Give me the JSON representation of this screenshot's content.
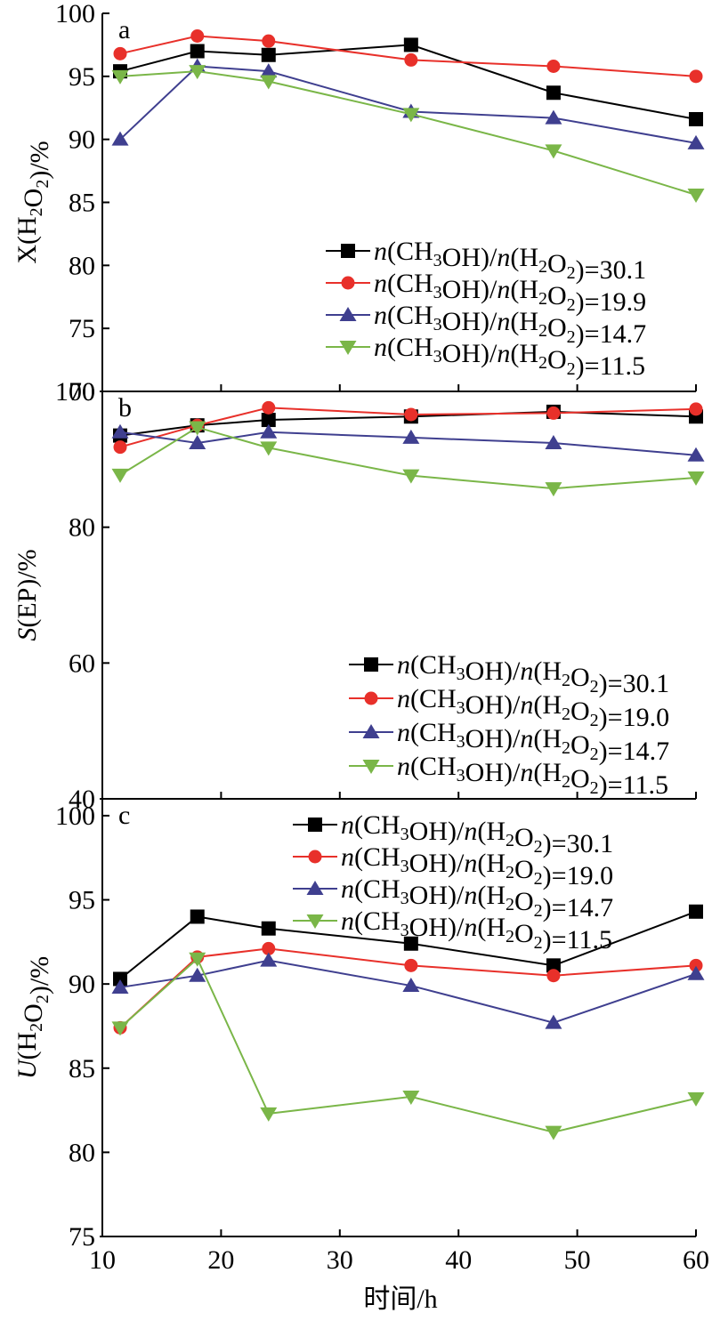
{
  "x_axis_label": "时间/h",
  "x_ticks": [
    "10",
    "20",
    "30",
    "40",
    "50",
    "60"
  ],
  "chart_data": [
    {
      "type": "line",
      "panel": "a",
      "ylabel": "X(H2O2)/%",
      "ylabel_parts": [
        {
          "t": "X(H"
        },
        {
          "t": "2",
          "sub": true
        },
        {
          "t": "O"
        },
        {
          "t": "2",
          "sub": true
        },
        {
          "t": ")/%"
        }
      ],
      "xlim": [
        10,
        60
      ],
      "ylim": [
        70,
        100
      ],
      "yticks": [
        "70",
        "75",
        "80",
        "85",
        "90",
        "95",
        "100"
      ],
      "x": [
        11.5,
        18,
        24,
        36,
        48,
        60
      ],
      "legend_position": "bottom-right",
      "series": [
        {
          "name": "n(CH3OH)/n(H2O2)=30.1",
          "legend_parts": [
            {
              "t": "n",
              "i": true
            },
            {
              "t": "(CH"
            },
            {
              "t": "3",
              "sub": true
            },
            {
              "t": "OH)/"
            },
            {
              "t": "n",
              "i": true
            },
            {
              "t": "(H"
            },
            {
              "t": "2",
              "sub": true
            },
            {
              "t": "O"
            },
            {
              "t": "2",
              "sub": true
            },
            {
              "t": ")=30.1"
            }
          ],
          "color": "#000000",
          "marker": "square",
          "values": [
            95.4,
            97.0,
            96.7,
            97.5,
            93.7,
            91.6
          ]
        },
        {
          "name": "n(CH3OH)/n(H2O2)=19.9",
          "legend_parts": [
            {
              "t": "n",
              "i": true
            },
            {
              "t": "(CH"
            },
            {
              "t": "3",
              "sub": true
            },
            {
              "t": "OH)/"
            },
            {
              "t": "n",
              "i": true
            },
            {
              "t": "(H"
            },
            {
              "t": "2",
              "sub": true
            },
            {
              "t": "O"
            },
            {
              "t": "2",
              "sub": true
            },
            {
              "t": ")=19.9"
            }
          ],
          "color": "#e8302a",
          "marker": "circle",
          "values": [
            96.8,
            98.2,
            97.8,
            96.3,
            95.8,
            95.0
          ]
        },
        {
          "name": "n(CH3OH)/n(H2O2)=14.7",
          "legend_parts": [
            {
              "t": "n",
              "i": true
            },
            {
              "t": "(CH"
            },
            {
              "t": "3",
              "sub": true
            },
            {
              "t": "OH)/"
            },
            {
              "t": "n",
              "i": true
            },
            {
              "t": "(H"
            },
            {
              "t": "2",
              "sub": true
            },
            {
              "t": "O"
            },
            {
              "t": "2",
              "sub": true
            },
            {
              "t": ")=14.7"
            }
          ],
          "color": "#3f3f8f",
          "marker": "triangle-up",
          "values": [
            90.0,
            95.8,
            95.4,
            92.2,
            91.7,
            89.7
          ]
        },
        {
          "name": "n(CH3OH)/n(H2O2)=11.5",
          "legend_parts": [
            {
              "t": "n",
              "i": true
            },
            {
              "t": "(CH"
            },
            {
              "t": "3",
              "sub": true
            },
            {
              "t": "OH)/"
            },
            {
              "t": "n",
              "i": true
            },
            {
              "t": "(H"
            },
            {
              "t": "2",
              "sub": true
            },
            {
              "t": "O"
            },
            {
              "t": "2",
              "sub": true
            },
            {
              "t": ")=11.5"
            }
          ],
          "color": "#7ab648",
          "marker": "triangle-down",
          "values": [
            95.0,
            95.4,
            94.6,
            92.0,
            89.1,
            85.6
          ]
        }
      ]
    },
    {
      "type": "line",
      "panel": "b",
      "ylabel": "S(EP)/%",
      "ylabel_parts": [
        {
          "t": "S",
          "i": true
        },
        {
          "t": "(EP)/%"
        }
      ],
      "xlim": [
        10,
        60
      ],
      "ylim": [
        40,
        100
      ],
      "yticks": [
        "40",
        "60",
        "80",
        "100"
      ],
      "x": [
        11.5,
        18,
        24,
        36,
        48,
        60
      ],
      "legend_position": "bottom-right",
      "series": [
        {
          "name": "n(CH3OH)/n(H2O2)=30.1",
          "legend_parts": [
            {
              "t": "n",
              "i": true
            },
            {
              "t": "(CH"
            },
            {
              "t": "3",
              "sub": true
            },
            {
              "t": "OH)/"
            },
            {
              "t": "n",
              "i": true
            },
            {
              "t": "(H"
            },
            {
              "t": "2",
              "sub": true
            },
            {
              "t": "O"
            },
            {
              "t": "2",
              "sub": true
            },
            {
              "t": ")=30.1"
            }
          ],
          "color": "#000000",
          "marker": "square",
          "values": [
            93.5,
            95.0,
            95.8,
            96.3,
            97.0,
            96.3
          ]
        },
        {
          "name": "n(CH3OH)/n(H2O2)=19.0",
          "legend_parts": [
            {
              "t": "n",
              "i": true
            },
            {
              "t": "(CH"
            },
            {
              "t": "3",
              "sub": true
            },
            {
              "t": "OH)/"
            },
            {
              "t": "n",
              "i": true
            },
            {
              "t": "(H"
            },
            {
              "t": "2",
              "sub": true
            },
            {
              "t": "O"
            },
            {
              "t": "2",
              "sub": true
            },
            {
              "t": ")=19.0"
            }
          ],
          "color": "#e8302a",
          "marker": "circle",
          "values": [
            91.8,
            95.0,
            97.6,
            96.6,
            96.8,
            97.4
          ]
        },
        {
          "name": "n(CH3OH)/n(H2O2)=14.7",
          "legend_parts": [
            {
              "t": "n",
              "i": true
            },
            {
              "t": "(CH"
            },
            {
              "t": "3",
              "sub": true
            },
            {
              "t": "OH)/"
            },
            {
              "t": "n",
              "i": true
            },
            {
              "t": "(H"
            },
            {
              "t": "2",
              "sub": true
            },
            {
              "t": "O"
            },
            {
              "t": "2",
              "sub": true
            },
            {
              "t": ")=14.7"
            }
          ],
          "color": "#3f3f8f",
          "marker": "triangle-up",
          "values": [
            94.0,
            92.4,
            94.0,
            93.2,
            92.4,
            90.6
          ]
        },
        {
          "name": "n(CH3OH)/n(H2O2)=11.5",
          "legend_parts": [
            {
              "t": "n",
              "i": true
            },
            {
              "t": "(CH"
            },
            {
              "t": "3",
              "sub": true
            },
            {
              "t": "OH)/"
            },
            {
              "t": "n",
              "i": true
            },
            {
              "t": "(H"
            },
            {
              "t": "2",
              "sub": true
            },
            {
              "t": "O"
            },
            {
              "t": "2",
              "sub": true
            },
            {
              "t": ")=11.5"
            }
          ],
          "color": "#7ab648",
          "marker": "triangle-down",
          "values": [
            87.7,
            94.7,
            91.7,
            87.6,
            85.7,
            87.3
          ]
        }
      ]
    },
    {
      "type": "line",
      "panel": "c",
      "ylabel": "U(H2O2)/%",
      "ylabel_parts": [
        {
          "t": "U",
          "i": true
        },
        {
          "t": "(H"
        },
        {
          "t": "2",
          "sub": true
        },
        {
          "t": "O"
        },
        {
          "t": "2",
          "sub": true
        },
        {
          "t": ")/%"
        }
      ],
      "xlim": [
        10,
        60
      ],
      "ylim": [
        75,
        101
      ],
      "yticks": [
        "75",
        "80",
        "85",
        "90",
        "95",
        "100"
      ],
      "x": [
        11.5,
        18,
        24,
        36,
        48,
        60
      ],
      "legend_position": "top-right",
      "series": [
        {
          "name": "n(CH3OH)/n(H2O2)=30.1",
          "legend_parts": [
            {
              "t": "n",
              "i": true
            },
            {
              "t": "(CH"
            },
            {
              "t": "3",
              "sub": true
            },
            {
              "t": "OH)/"
            },
            {
              "t": "n",
              "i": true
            },
            {
              "t": "(H"
            },
            {
              "t": "2",
              "sub": true
            },
            {
              "t": "O"
            },
            {
              "t": "2",
              "sub": true
            },
            {
              "t": ")=30.1"
            }
          ],
          "color": "#000000",
          "marker": "square",
          "values": [
            90.3,
            94.0,
            93.3,
            92.4,
            91.1,
            94.3
          ]
        },
        {
          "name": "n(CH3OH)/n(H2O2)=19.0",
          "legend_parts": [
            {
              "t": "n",
              "i": true
            },
            {
              "t": "(CH"
            },
            {
              "t": "3",
              "sub": true
            },
            {
              "t": "OH)/"
            },
            {
              "t": "n",
              "i": true
            },
            {
              "t": "(H"
            },
            {
              "t": "2",
              "sub": true
            },
            {
              "t": "O"
            },
            {
              "t": "2",
              "sub": true
            },
            {
              "t": ")=19.0"
            }
          ],
          "color": "#e8302a",
          "marker": "circle",
          "values": [
            87.4,
            91.6,
            92.1,
            91.1,
            90.5,
            91.1
          ]
        },
        {
          "name": "n(CH3OH)/n(H2O2)=14.7",
          "legend_parts": [
            {
              "t": "n",
              "i": true
            },
            {
              "t": "(CH"
            },
            {
              "t": "3",
              "sub": true
            },
            {
              "t": "OH)/"
            },
            {
              "t": "n",
              "i": true
            },
            {
              "t": "(H"
            },
            {
              "t": "2",
              "sub": true
            },
            {
              "t": "O"
            },
            {
              "t": "2",
              "sub": true
            },
            {
              "t": ")=14.7"
            }
          ],
          "color": "#3f3f8f",
          "marker": "triangle-up",
          "values": [
            89.8,
            90.5,
            91.4,
            89.9,
            87.7,
            90.6
          ]
        },
        {
          "name": "n(CH3OH)/n(H2O2)=11.5",
          "legend_parts": [
            {
              "t": "n",
              "i": true
            },
            {
              "t": "(CH"
            },
            {
              "t": "3",
              "sub": true
            },
            {
              "t": "OH)/"
            },
            {
              "t": "n",
              "i": true
            },
            {
              "t": "(H"
            },
            {
              "t": "2",
              "sub": true
            },
            {
              "t": "O"
            },
            {
              "t": "2",
              "sub": true
            },
            {
              "t": ")=11.5"
            }
          ],
          "color": "#7ab648",
          "marker": "triangle-down",
          "values": [
            87.4,
            91.5,
            82.3,
            83.3,
            81.2,
            83.2
          ]
        }
      ]
    }
  ]
}
